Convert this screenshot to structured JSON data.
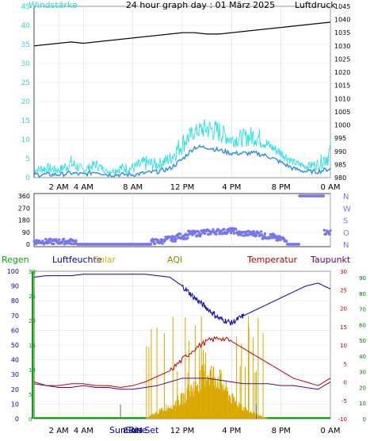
{
  "header": {
    "title": "24 hour graph day : 01 März 2025",
    "left_label": "Windstärke",
    "right_label": "Luftdruck"
  },
  "colors": {
    "frame_bg": "#ffffff",
    "plot_bg": "#ffffff",
    "wind": "#2bd6d6",
    "gust": "#30e0e0",
    "wind_avg": "#2a8ee6",
    "pressure": "#000000",
    "direction": "#7777ee",
    "humidity": "#0000aa",
    "temperature": "#bb0000",
    "dewpoint": "#660066",
    "solar": "#d8a800",
    "rain": "#00aa00",
    "aqi": "#888800",
    "uv": "#4b6cf0"
  },
  "panel1": {
    "left_ticks": [
      "0",
      "5",
      "10",
      "15",
      "20",
      "25",
      "30",
      "35",
      "40",
      "45"
    ],
    "right_ticks": [
      "980",
      "985",
      "990",
      "995",
      "1000",
      "1005",
      "1010",
      "1015",
      "1020",
      "1025",
      "1030",
      "1035",
      "1040",
      "1045"
    ]
  },
  "panel2": {
    "left_ticks": [
      "0",
      "90",
      "180",
      "270",
      "360"
    ],
    "right_ticks": [
      "N",
      "O",
      "S",
      "W",
      "N"
    ]
  },
  "panel3": {
    "labels": {
      "rain": "Regen",
      "humidity": "Luftfeuchte",
      "solar": "Solar",
      "aqi": "AQI",
      "temperature": "Temperatur",
      "dewpoint": "Taupunkt"
    },
    "left_ticks": [
      "0",
      "10",
      "20",
      "30",
      "40",
      "50",
      "60",
      "70",
      "80",
      "90",
      "100"
    ],
    "rain_ticks": [
      "0",
      "5",
      "10",
      "15",
      "20",
      "25",
      "30"
    ],
    "temp_ticks": [
      "-10",
      "-5",
      "0",
      "5",
      "10",
      "15",
      "20",
      "25",
      "30"
    ],
    "dew_ticks": [
      "0",
      "10",
      "20",
      "30",
      "40",
      "50",
      "60",
      "70",
      "80",
      "90"
    ],
    "sun_labels": [
      "Sun Rise",
      "Sun Set"
    ]
  },
  "x_ticks": [
    "2 AM",
    "4 AM",
    "8 AM",
    "12 PM",
    "4 PM",
    "8 PM",
    "0 AM"
  ],
  "x_ticks_bottom": [
    "2 AM",
    "4 AM",
    "8 AM",
    "12 PM",
    "4 PM",
    "8 PM",
    "0 AM"
  ],
  "chart_data": [
    {
      "type": "line",
      "title": "24 hour graph day : 01 März 2025",
      "x_hours_from_midnight": [
        0,
        1,
        2,
        3,
        4,
        5,
        6,
        7,
        8,
        9,
        10,
        11,
        12,
        13,
        14,
        15,
        16,
        17,
        18,
        19,
        20,
        21,
        22,
        23,
        24
      ],
      "series": [
        {
          "name": "Windstärke",
          "axis": "left",
          "values": [
            1,
            1,
            1,
            1.5,
            1,
            2,
            1,
            1,
            1,
            1.5,
            2,
            3,
            6,
            10,
            10,
            9,
            8,
            8,
            8,
            7,
            5,
            3,
            2,
            2,
            3
          ]
        },
        {
          "name": "Luftdruck",
          "axis": "right",
          "values": [
            1030,
            1030.5,
            1031,
            1031.5,
            1031,
            1031.5,
            1032,
            1032.5,
            1033,
            1033.5,
            1034,
            1034.5,
            1035,
            1035,
            1034.5,
            1034.5,
            1035,
            1035.5,
            1036,
            1036.5,
            1037,
            1037.5,
            1038,
            1038.5,
            1039
          ]
        }
      ],
      "gust_max_values": [
        3,
        4,
        3,
        6,
        3,
        5,
        2,
        4,
        4,
        6,
        5,
        7,
        12,
        14,
        16,
        15,
        12,
        13,
        14,
        10,
        8,
        5,
        4,
        5,
        10
      ],
      "left_ylim": [
        0,
        45
      ],
      "right_ylim": [
        980,
        1045
      ]
    },
    {
      "type": "scatter",
      "ylabel": "",
      "x_hours_from_midnight": [
        0,
        1,
        2,
        3,
        4,
        5,
        6,
        7,
        8,
        9,
        10,
        11,
        12,
        13,
        14,
        15,
        16,
        17,
        18,
        19,
        20,
        21,
        22,
        23,
        24
      ],
      "values": [
        20,
        20,
        20,
        20,
        0,
        0,
        0,
        0,
        0,
        0,
        20,
        40,
        60,
        80,
        90,
        95,
        100,
        80,
        80,
        60,
        40,
        0,
        360,
        360,
        90
      ],
      "ylim": [
        0,
        360
      ]
    },
    {
      "type": "line",
      "x_hours_from_midnight": [
        0,
        1,
        2,
        3,
        4,
        5,
        6,
        7,
        8,
        9,
        10,
        11,
        12,
        13,
        14,
        15,
        16,
        17,
        18,
        19,
        20,
        21,
        22,
        23,
        24
      ],
      "series": [
        {
          "name": "Luftfeuchte",
          "axis": "left",
          "values": [
            96,
            97,
            97,
            97,
            98,
            98,
            98,
            98,
            98,
            98,
            97,
            96,
            90,
            82,
            75,
            68,
            65,
            70,
            74,
            78,
            82,
            86,
            90,
            92,
            88
          ]
        },
        {
          "name": "Temperatur",
          "axis": "temp",
          "values": [
            0,
            -1,
            -1,
            -0.5,
            -0.5,
            -1,
            -1,
            -1.5,
            -1,
            0,
            1.5,
            3,
            6,
            9,
            11,
            12,
            11,
            9,
            7,
            5,
            3,
            1,
            0,
            -1,
            1
          ]
        },
        {
          "name": "Taupunkt",
          "axis": "temp",
          "values": [
            -0.5,
            -1,
            -1.5,
            -1.5,
            -1,
            -1.5,
            -1.5,
            -2,
            -2,
            -1.5,
            -1,
            0,
            1,
            1,
            1,
            0.5,
            0,
            -0.5,
            -0.5,
            -0.5,
            -1,
            -1,
            -1.5,
            -2,
            0
          ]
        },
        {
          "name": "Solar",
          "axis": "left",
          "values": [
            0,
            0,
            0,
            0,
            0,
            0,
            0,
            0,
            0,
            0,
            5,
            10,
            15,
            25,
            35,
            30,
            15,
            8,
            3,
            0,
            0,
            0,
            0,
            0,
            0
          ]
        }
      ],
      "left_ylim": [
        0,
        100
      ],
      "temp_ylim": [
        -10,
        30
      ],
      "sun_rise_hour": 7,
      "sun_set_hour": 18
    }
  ]
}
